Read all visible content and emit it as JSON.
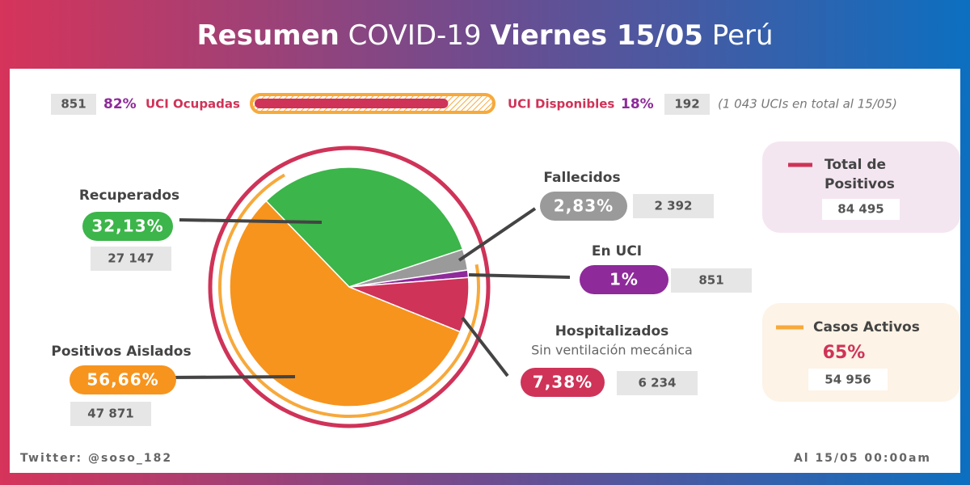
{
  "header": {
    "title_bold": "Resumen",
    "title_light": "COVID-19",
    "date": "Viernes 15/05",
    "country": "Perú"
  },
  "uci": {
    "occupied": "851",
    "occupied_pct": {
      "value": 82,
      "label": "82%"
    },
    "occupied_label": "UCI Ocupadas",
    "available_label": "UCI Disponibles",
    "available_pct": "18%",
    "available": "192",
    "note": "(1 043 UCIs en total al 15/05)"
  },
  "chart_data": {
    "type": "pie",
    "categories": [
      "Recuperados",
      "Fallecidos",
      "En UCI",
      "Hospitalizados",
      "Positivos Aislados"
    ],
    "values": [
      32.13,
      2.83,
      1,
      7.38,
      56.66
    ],
    "value_labels": [
      "32,13%",
      "2,83%",
      "1%",
      "7,38%",
      "56,66%"
    ],
    "colors": [
      "#3cb54a",
      "#9a9a9a",
      "#8e2a9a",
      "#cf3358",
      "#f7941d"
    ],
    "counts": [
      "27 147",
      "2 392",
      "851",
      "6 234",
      "47 871"
    ],
    "annotation": "Sin ventilación mecánica"
  },
  "cards": {
    "total_label_1": "Total de",
    "total_label_2": "Positivos",
    "total_value": "84 495",
    "active_label": "Casos Activos",
    "active_pct": "65%",
    "active_value": "54 956"
  },
  "footer": {
    "left": "Twitter: @soso_182",
    "right": "Al 15/05 00:00am"
  }
}
